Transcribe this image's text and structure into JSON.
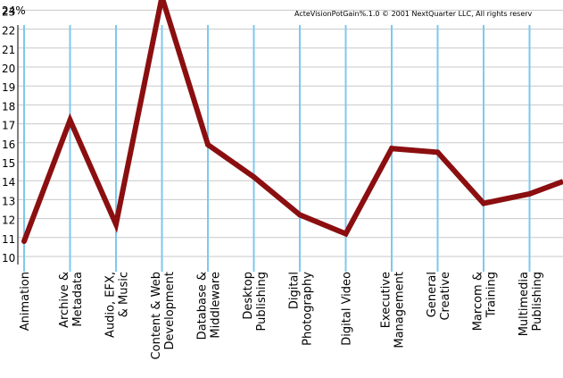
{
  "chart_data": {
    "type": "line",
    "unit_label": "24%",
    "copyright": "ActeVisionPotGain%.1.0 © 2001 NextQuarter LLC, All rights reserv",
    "ylim": [
      10,
      24
    ],
    "y_ticks": [
      10,
      11,
      12,
      13,
      14,
      15,
      16,
      17,
      18,
      19,
      20,
      21,
      22,
      23
    ],
    "grid": true,
    "categories": [
      [
        "Animation"
      ],
      [
        "Archive &",
        "Metadata"
      ],
      [
        "Audio, EFX,",
        "& Music"
      ],
      [
        "Content & Web",
        "Development"
      ],
      [
        "Database &",
        "Middleware"
      ],
      [
        "Desktop",
        "Publishing"
      ],
      [
        "Digital",
        "Photography"
      ],
      [
        "Digital Video"
      ],
      [
        "Executive",
        "Management"
      ],
      [
        "General",
        "Creative"
      ],
      [
        "Marcom &",
        "Training"
      ],
      [
        "Multimedia",
        "Publishing"
      ]
    ],
    "values": [
      10.8,
      17.2,
      11.7,
      23.7,
      15.9,
      14.2,
      12.2,
      11.2,
      15.7,
      15.5,
      12.8,
      13.3
    ],
    "trailing_value": 14.2,
    "colors": {
      "line": "#8b0f10",
      "grid_vertical": "#7ec8ee",
      "grid_horizontal": "#c8c8c8",
      "text": "#000000"
    }
  }
}
